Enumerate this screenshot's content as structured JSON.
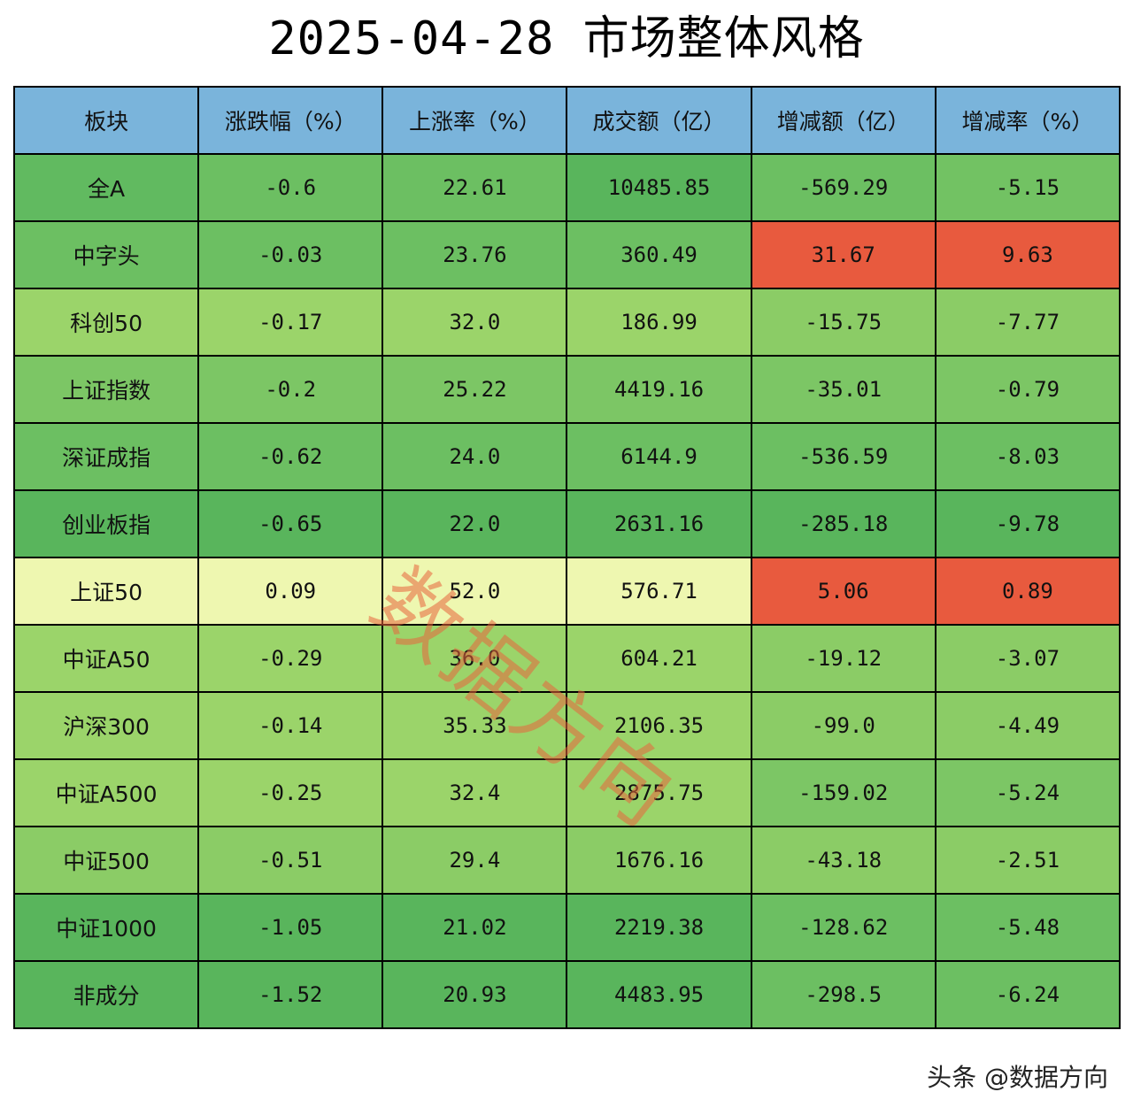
{
  "title": "2025-04-28 市场整体风格",
  "watermark": "数据方向",
  "credit": "头条 @数据方向",
  "colors": {
    "header": "#7ab4db",
    "green_dark": "#59b55c",
    "green_mid": "#6cbf62",
    "green_light": "#9bd46a",
    "yellow_pale": "#eef7b0",
    "red": "#e85a3e"
  },
  "chart_data": {
    "type": "table",
    "title": "2025-04-28 市场整体风格",
    "columns": [
      "板块",
      "涨跌幅（%）",
      "上涨率（%）",
      "成交额（亿）",
      "增减额（亿）",
      "增减率（%）"
    ],
    "rows": [
      {
        "cells": [
          "全A",
          "-0.6",
          "22.61",
          "10485.85",
          "-569.29",
          "-5.15"
        ],
        "colors": [
          "#61ba60",
          "#6cbf62",
          "#6cbf62",
          "#59b55c",
          "#6cbf62",
          "#72c263"
        ]
      },
      {
        "cells": [
          "中字头",
          "-0.03",
          "23.76",
          "360.49",
          "31.67",
          "9.63"
        ],
        "colors": [
          "#6cbf62",
          "#6cbf62",
          "#6cbf62",
          "#6cbf62",
          "#e85a3e",
          "#e85a3e"
        ]
      },
      {
        "cells": [
          "科创50",
          "-0.17",
          "32.0",
          "186.99",
          "-15.75",
          "-7.77"
        ],
        "colors": [
          "#9bd46a",
          "#9bd46a",
          "#9bd46a",
          "#9bd46a",
          "#8bcc66",
          "#8bcc66"
        ]
      },
      {
        "cells": [
          "上证指数",
          "-0.2",
          "25.22",
          "4419.16",
          "-35.01",
          "-0.79"
        ],
        "colors": [
          "#7cc665",
          "#7cc665",
          "#7cc665",
          "#7cc665",
          "#7cc665",
          "#7cc665"
        ]
      },
      {
        "cells": [
          "深证成指",
          "-0.62",
          "24.0",
          "6144.9",
          "-536.59",
          "-8.03"
        ],
        "colors": [
          "#6cbf62",
          "#6cbf62",
          "#6cbf62",
          "#6cbf62",
          "#6cbf62",
          "#6cbf62"
        ]
      },
      {
        "cells": [
          "创业板指",
          "-0.65",
          "22.0",
          "2631.16",
          "-285.18",
          "-9.78"
        ],
        "colors": [
          "#59b55c",
          "#59b55c",
          "#59b55c",
          "#59b55c",
          "#59b55c",
          "#59b55c"
        ]
      },
      {
        "cells": [
          "上证50",
          "0.09",
          "52.0",
          "576.71",
          "5.06",
          "0.89"
        ],
        "colors": [
          "#eef7b0",
          "#eef7b0",
          "#eef7b0",
          "#eef7b0",
          "#e85a3e",
          "#e85a3e"
        ]
      },
      {
        "cells": [
          "中证A50",
          "-0.29",
          "36.0",
          "604.21",
          "-19.12",
          "-3.07"
        ],
        "colors": [
          "#9bd46a",
          "#9bd46a",
          "#9bd46a",
          "#9bd46a",
          "#8bcc66",
          "#8bcc66"
        ]
      },
      {
        "cells": [
          "沪深300",
          "-0.14",
          "35.33",
          "2106.35",
          "-99.0",
          "-4.49"
        ],
        "colors": [
          "#9bd46a",
          "#9bd46a",
          "#9bd46a",
          "#9bd46a",
          "#8bcc66",
          "#8bcc66"
        ]
      },
      {
        "cells": [
          "中证A500",
          "-0.25",
          "32.4",
          "2875.75",
          "-159.02",
          "-5.24"
        ],
        "colors": [
          "#9bd46a",
          "#9bd46a",
          "#9bd46a",
          "#9bd46a",
          "#7cc665",
          "#7cc665"
        ]
      },
      {
        "cells": [
          "中证500",
          "-0.51",
          "29.4",
          "1676.16",
          "-43.18",
          "-2.51"
        ],
        "colors": [
          "#8bcc66",
          "#8bcc66",
          "#8bcc66",
          "#8bcc66",
          "#8bcc66",
          "#8bcc66"
        ]
      },
      {
        "cells": [
          "中证1000",
          "-1.05",
          "21.02",
          "2219.38",
          "-128.62",
          "-5.48"
        ],
        "colors": [
          "#59b55c",
          "#59b55c",
          "#59b55c",
          "#59b55c",
          "#6cbf62",
          "#6cbf62"
        ]
      },
      {
        "cells": [
          "非成分",
          "-1.52",
          "20.93",
          "4483.95",
          "-298.5",
          "-6.24"
        ],
        "colors": [
          "#59b55c",
          "#59b55c",
          "#59b55c",
          "#59b55c",
          "#6cbf62",
          "#6cbf62"
        ]
      }
    ]
  }
}
